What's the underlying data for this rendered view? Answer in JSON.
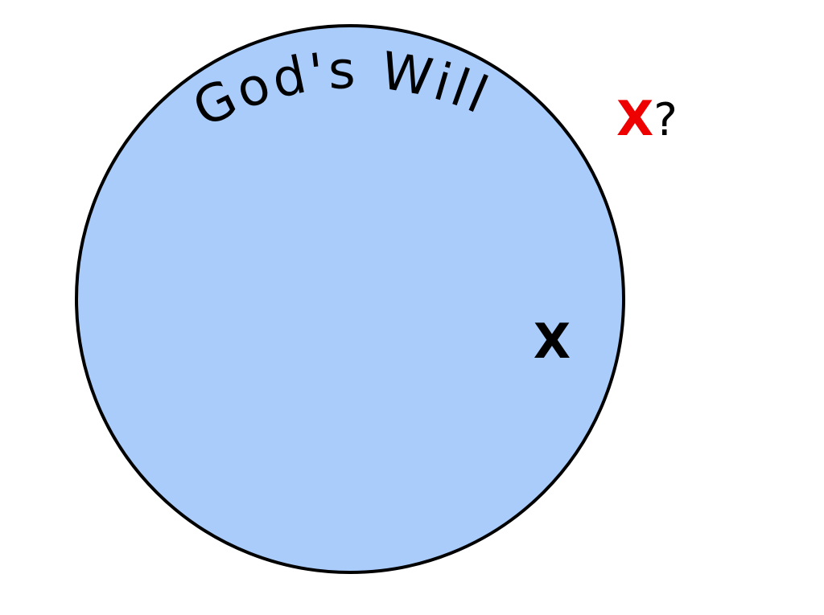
{
  "circle": {
    "label": "God's Will",
    "fill": "#aaccfb",
    "stroke": "#000000"
  },
  "inside_mark": {
    "text": "X",
    "color": "#000000"
  },
  "outside_mark": {
    "text": "X",
    "color": "#ee0000",
    "suffix": "?",
    "suffix_color": "#000000"
  }
}
